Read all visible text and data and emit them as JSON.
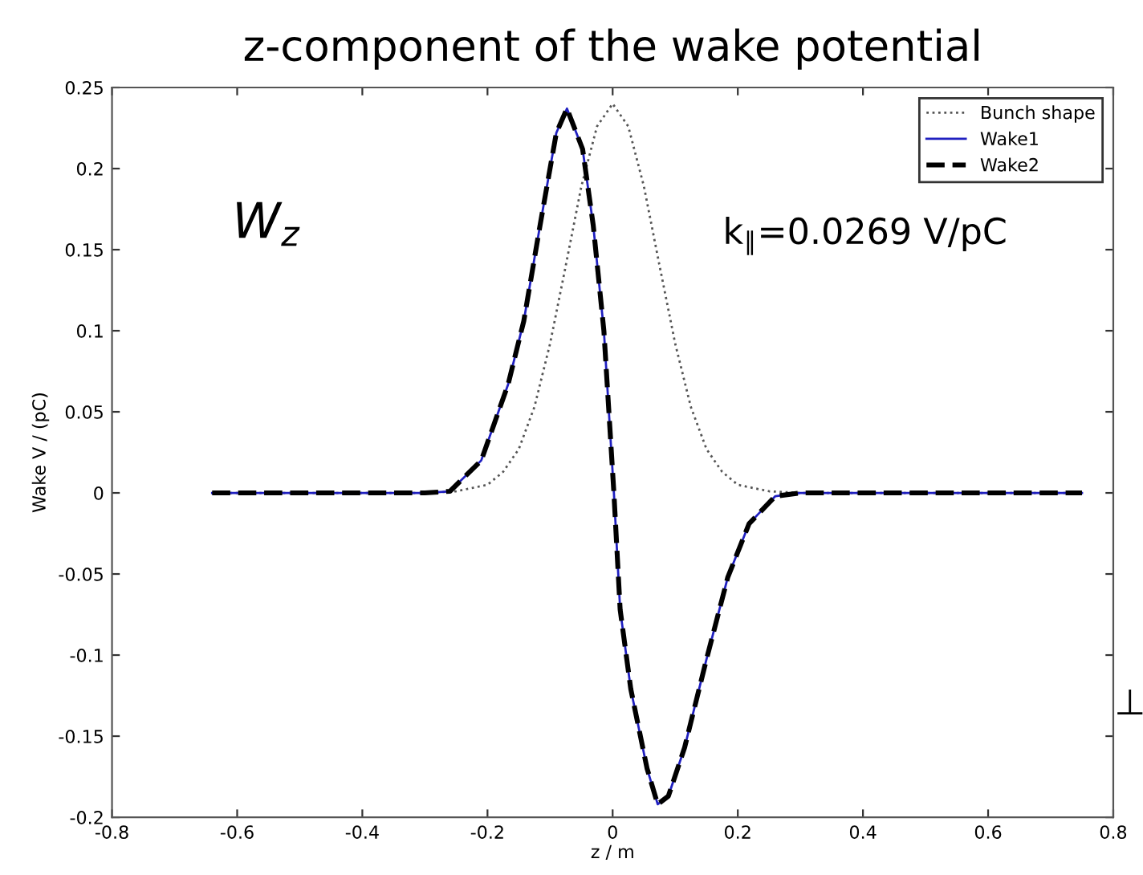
{
  "chart_data": {
    "type": "line",
    "title": "z-component of the wake potential",
    "xlabel": "z / m",
    "ylabel": "Wake V / (pC)",
    "xlim": [
      -0.8,
      0.8
    ],
    "xticks": [
      -0.8,
      -0.6,
      -0.4,
      -0.2,
      0,
      0.2,
      0.4,
      0.6,
      0.8
    ],
    "ylim": [
      -0.2,
      0.25
    ],
    "yticks": [
      -0.2,
      -0.15,
      -0.1,
      -0.05,
      0,
      0.05,
      0.1,
      0.15,
      0.2,
      0.25
    ],
    "grid": false,
    "legend": "top right",
    "marker": "none",
    "annotations": [
      "W$_{z}$",
      "k$_{∥}$=0.0269 V/pC",
      "⊥"
    ],
    "series": [
      {
        "name": "Bunch shape",
        "color": "#555555",
        "line_style": "dotted",
        "x": [
          -0.64,
          -0.3,
          -0.25,
          -0.2,
          -0.175,
          -0.15,
          -0.125,
          -0.1,
          -0.075,
          -0.05,
          -0.025,
          0,
          0.025,
          0.05,
          0.075,
          0.1,
          0.125,
          0.15,
          0.175,
          0.2,
          0.25,
          0.3,
          0.75
        ],
        "values": [
          0,
          0,
          0.001,
          0.005,
          0.013,
          0.027,
          0.053,
          0.092,
          0.14,
          0.189,
          0.226,
          0.24,
          0.226,
          0.189,
          0.14,
          0.092,
          0.053,
          0.027,
          0.013,
          0.005,
          0.001,
          0,
          0
        ]
      },
      {
        "name": "Wake1",
        "color": "#2020c0",
        "line_style": "solid",
        "x": [
          -0.64,
          -0.3,
          -0.26,
          -0.21,
          -0.167,
          -0.142,
          -0.116,
          -0.09,
          -0.073,
          -0.048,
          -0.031,
          -0.014,
          0.002,
          0.012,
          0.029,
          0.055,
          0.072,
          0.089,
          0.115,
          0.149,
          0.184,
          0.218,
          0.26,
          0.3,
          0.75
        ],
        "values": [
          0,
          0,
          0.001,
          0.02,
          0.067,
          0.106,
          0.165,
          0.222,
          0.237,
          0.212,
          0.165,
          0.1,
          0,
          -0.072,
          -0.121,
          -0.17,
          -0.192,
          -0.187,
          -0.157,
          -0.104,
          -0.052,
          -0.019,
          -0.002,
          0,
          0
        ]
      },
      {
        "name": "Wake2",
        "color": "#000000",
        "line_style": "dashed",
        "x": [
          -0.64,
          -0.3,
          -0.26,
          -0.21,
          -0.167,
          -0.142,
          -0.116,
          -0.09,
          -0.073,
          -0.048,
          -0.031,
          -0.014,
          0.002,
          0.012,
          0.029,
          0.055,
          0.072,
          0.089,
          0.115,
          0.149,
          0.184,
          0.218,
          0.26,
          0.3,
          0.75
        ],
        "values": [
          0,
          0,
          0.001,
          0.02,
          0.067,
          0.106,
          0.165,
          0.222,
          0.237,
          0.212,
          0.165,
          0.1,
          0,
          -0.072,
          -0.121,
          -0.17,
          -0.192,
          -0.187,
          -0.157,
          -0.104,
          -0.052,
          -0.019,
          -0.002,
          0,
          0
        ]
      }
    ]
  }
}
